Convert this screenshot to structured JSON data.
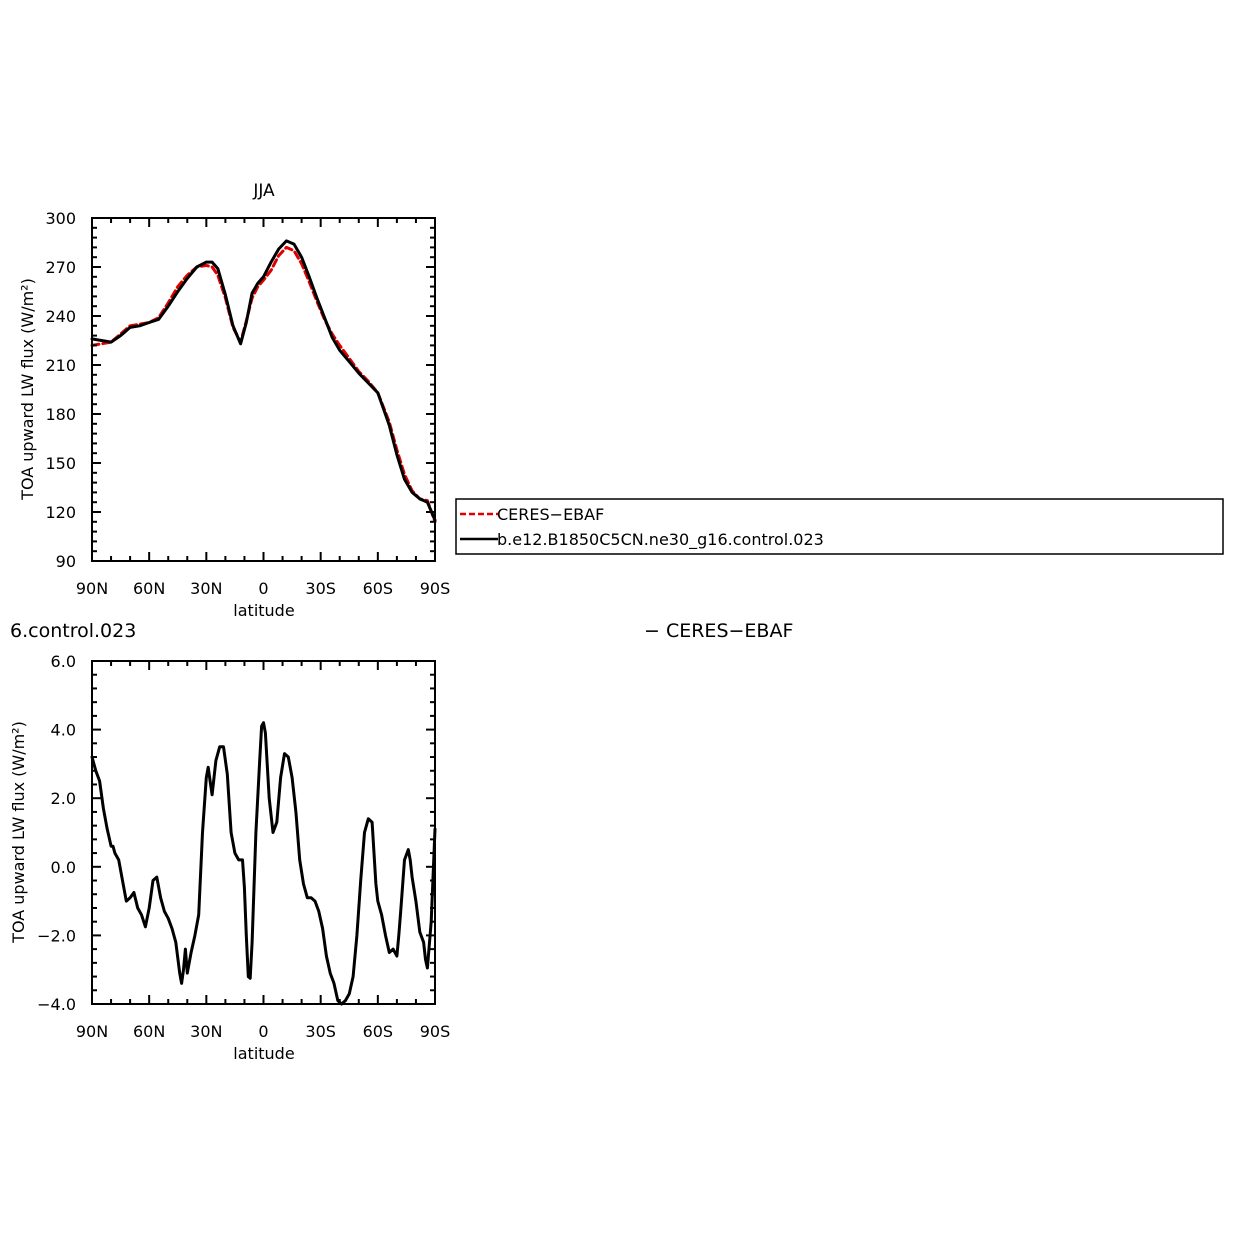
{
  "chart_data": [
    {
      "type": "line",
      "title": "JJA",
      "xlabel": "latitude",
      "ylabel": "TOA upward LW flux (W/m²)",
      "xlim": [
        90,
        -90
      ],
      "ylim": [
        90,
        300
      ],
      "xticks": [
        90,
        60,
        30,
        0,
        -30,
        -60,
        -90
      ],
      "xtick_labels": [
        "90N",
        "60N",
        "30N",
        "0",
        "30S",
        "60S",
        "90S"
      ],
      "yticks": [
        90,
        120,
        150,
        180,
        210,
        240,
        270,
        300
      ],
      "ytick_labels": [
        "90",
        "120",
        "150",
        "180",
        "210",
        "240",
        "270",
        "300"
      ],
      "grid": false,
      "legend_position": "right",
      "series": [
        {
          "name": "CERES−EBAF",
          "color": "#e00000",
          "dash": "dashed",
          "x": [
            90,
            85,
            80,
            75,
            70,
            65,
            60,
            55,
            50,
            45,
            40,
            35,
            30,
            27,
            24,
            20,
            16,
            12,
            9,
            6,
            3,
            0,
            -4,
            -8,
            -12,
            -16,
            -20,
            -24,
            -28,
            -32,
            -36,
            -40,
            -45,
            -50,
            -55,
            -60,
            -63,
            -66,
            -70,
            -74,
            -78,
            -82,
            -86,
            -90
          ],
          "y": [
            222,
            223,
            224,
            229,
            234,
            235,
            236,
            239,
            248,
            258,
            265,
            270,
            271,
            270,
            265,
            251,
            233,
            224,
            237,
            251,
            258,
            262,
            268,
            277,
            282,
            280,
            272,
            261,
            249,
            238,
            229,
            222,
            214,
            206,
            200,
            193,
            184,
            175,
            158,
            143,
            133,
            128,
            127,
            114
          ]
        },
        {
          "name": "b.e12.B1850C5CN.ne30_g16.control.023",
          "color": "#000000",
          "dash": "solid",
          "x": [
            90,
            85,
            80,
            75,
            70,
            65,
            60,
            55,
            50,
            45,
            40,
            35,
            30,
            27,
            24,
            20,
            16,
            12,
            9,
            6,
            3,
            0,
            -4,
            -8,
            -12,
            -16,
            -20,
            -24,
            -28,
            -32,
            -36,
            -40,
            -45,
            -50,
            -55,
            -60,
            -63,
            -66,
            -70,
            -74,
            -78,
            -82,
            -86,
            -90
          ],
          "y": [
            226,
            225,
            224,
            228,
            233,
            234,
            236,
            238,
            246,
            255,
            263,
            270,
            273,
            273,
            269,
            253,
            234,
            223,
            236,
            254,
            260,
            264,
            273,
            281,
            286,
            284,
            276,
            264,
            251,
            239,
            227,
            219,
            212,
            205,
            199,
            193,
            183,
            173,
            155,
            140,
            132,
            128,
            126,
            115
          ]
        }
      ]
    },
    {
      "type": "line",
      "title": "6.control.023",
      "title_right": "− CERES−EBAF",
      "xlabel": "latitude",
      "ylabel": "TOA upward LW flux (W/m²)",
      "xlim": [
        90,
        -90
      ],
      "ylim": [
        -4.0,
        6.0
      ],
      "xticks": [
        90,
        60,
        30,
        0,
        -30,
        -60,
        -90
      ],
      "xtick_labels": [
        "90N",
        "60N",
        "30N",
        "0",
        "30S",
        "60S",
        "90S"
      ],
      "yticks": [
        -4,
        -2,
        0,
        2,
        4,
        6
      ],
      "ytick_labels": [
        "−4.0",
        "−2.0",
        "0.0",
        "2.0",
        "4.0",
        "6.0"
      ],
      "grid": false,
      "series": [
        {
          "name": "",
          "color": "#000000",
          "dash": "solid",
          "x": [
            90,
            88,
            86,
            84,
            82,
            80,
            79,
            78,
            76,
            74,
            72,
            70,
            68,
            66,
            64,
            62,
            60,
            58,
            56,
            54,
            52,
            50,
            48,
            46,
            44,
            43,
            42,
            41,
            40,
            38,
            36,
            34,
            32,
            30,
            29,
            28,
            27,
            25,
            23,
            21,
            19,
            17,
            15,
            13,
            11,
            10,
            9,
            8,
            7,
            6,
            4,
            2,
            1,
            0,
            -1,
            -3,
            -5,
            -7,
            -9,
            -11,
            -13,
            -15,
            -17,
            -19,
            -21,
            -23,
            -25,
            -27,
            -29,
            -31,
            -33,
            -35,
            -37,
            -39,
            -41,
            -43,
            -45,
            -47,
            -49,
            -51,
            -53,
            -55,
            -57,
            -59,
            -60,
            -61,
            -62,
            -64,
            -66,
            -68,
            -70,
            -71,
            -72,
            -74,
            -76,
            -77,
            -78,
            -80,
            -82,
            -84,
            -85,
            -86,
            -88,
            -90
          ],
          "y": [
            3.2,
            2.8,
            2.5,
            1.7,
            1.1,
            0.6,
            0.6,
            0.4,
            0.2,
            -0.4,
            -1.0,
            -0.9,
            -0.75,
            -1.2,
            -1.4,
            -1.75,
            -1.2,
            -0.4,
            -0.3,
            -0.9,
            -1.3,
            -1.5,
            -1.8,
            -2.2,
            -3.1,
            -3.4,
            -3.0,
            -2.4,
            -3.1,
            -2.5,
            -2.0,
            -1.4,
            1.0,
            2.6,
            2.9,
            2.5,
            2.1,
            3.1,
            3.5,
            3.5,
            2.7,
            1.0,
            0.4,
            0.2,
            0.2,
            -0.6,
            -2.0,
            -3.2,
            -3.25,
            -2.2,
            1.0,
            3.1,
            4.1,
            4.2,
            3.9,
            2.0,
            1.0,
            1.3,
            2.6,
            3.3,
            3.2,
            2.6,
            1.6,
            0.2,
            -0.5,
            -0.9,
            -0.9,
            -1.0,
            -1.3,
            -1.8,
            -2.6,
            -3.1,
            -3.4,
            -3.9,
            -4.0,
            -3.9,
            -3.7,
            -3.2,
            -2.0,
            -0.4,
            1.0,
            1.4,
            1.3,
            -0.5,
            -1.0,
            -1.2,
            -1.4,
            -2.0,
            -2.5,
            -2.4,
            -2.6,
            -2.0,
            -1.3,
            0.2,
            0.5,
            0.2,
            -0.3,
            -1.0,
            -1.9,
            -2.2,
            -2.7,
            -2.95,
            -1.6,
            1.1
          ]
        }
      ]
    }
  ]
}
